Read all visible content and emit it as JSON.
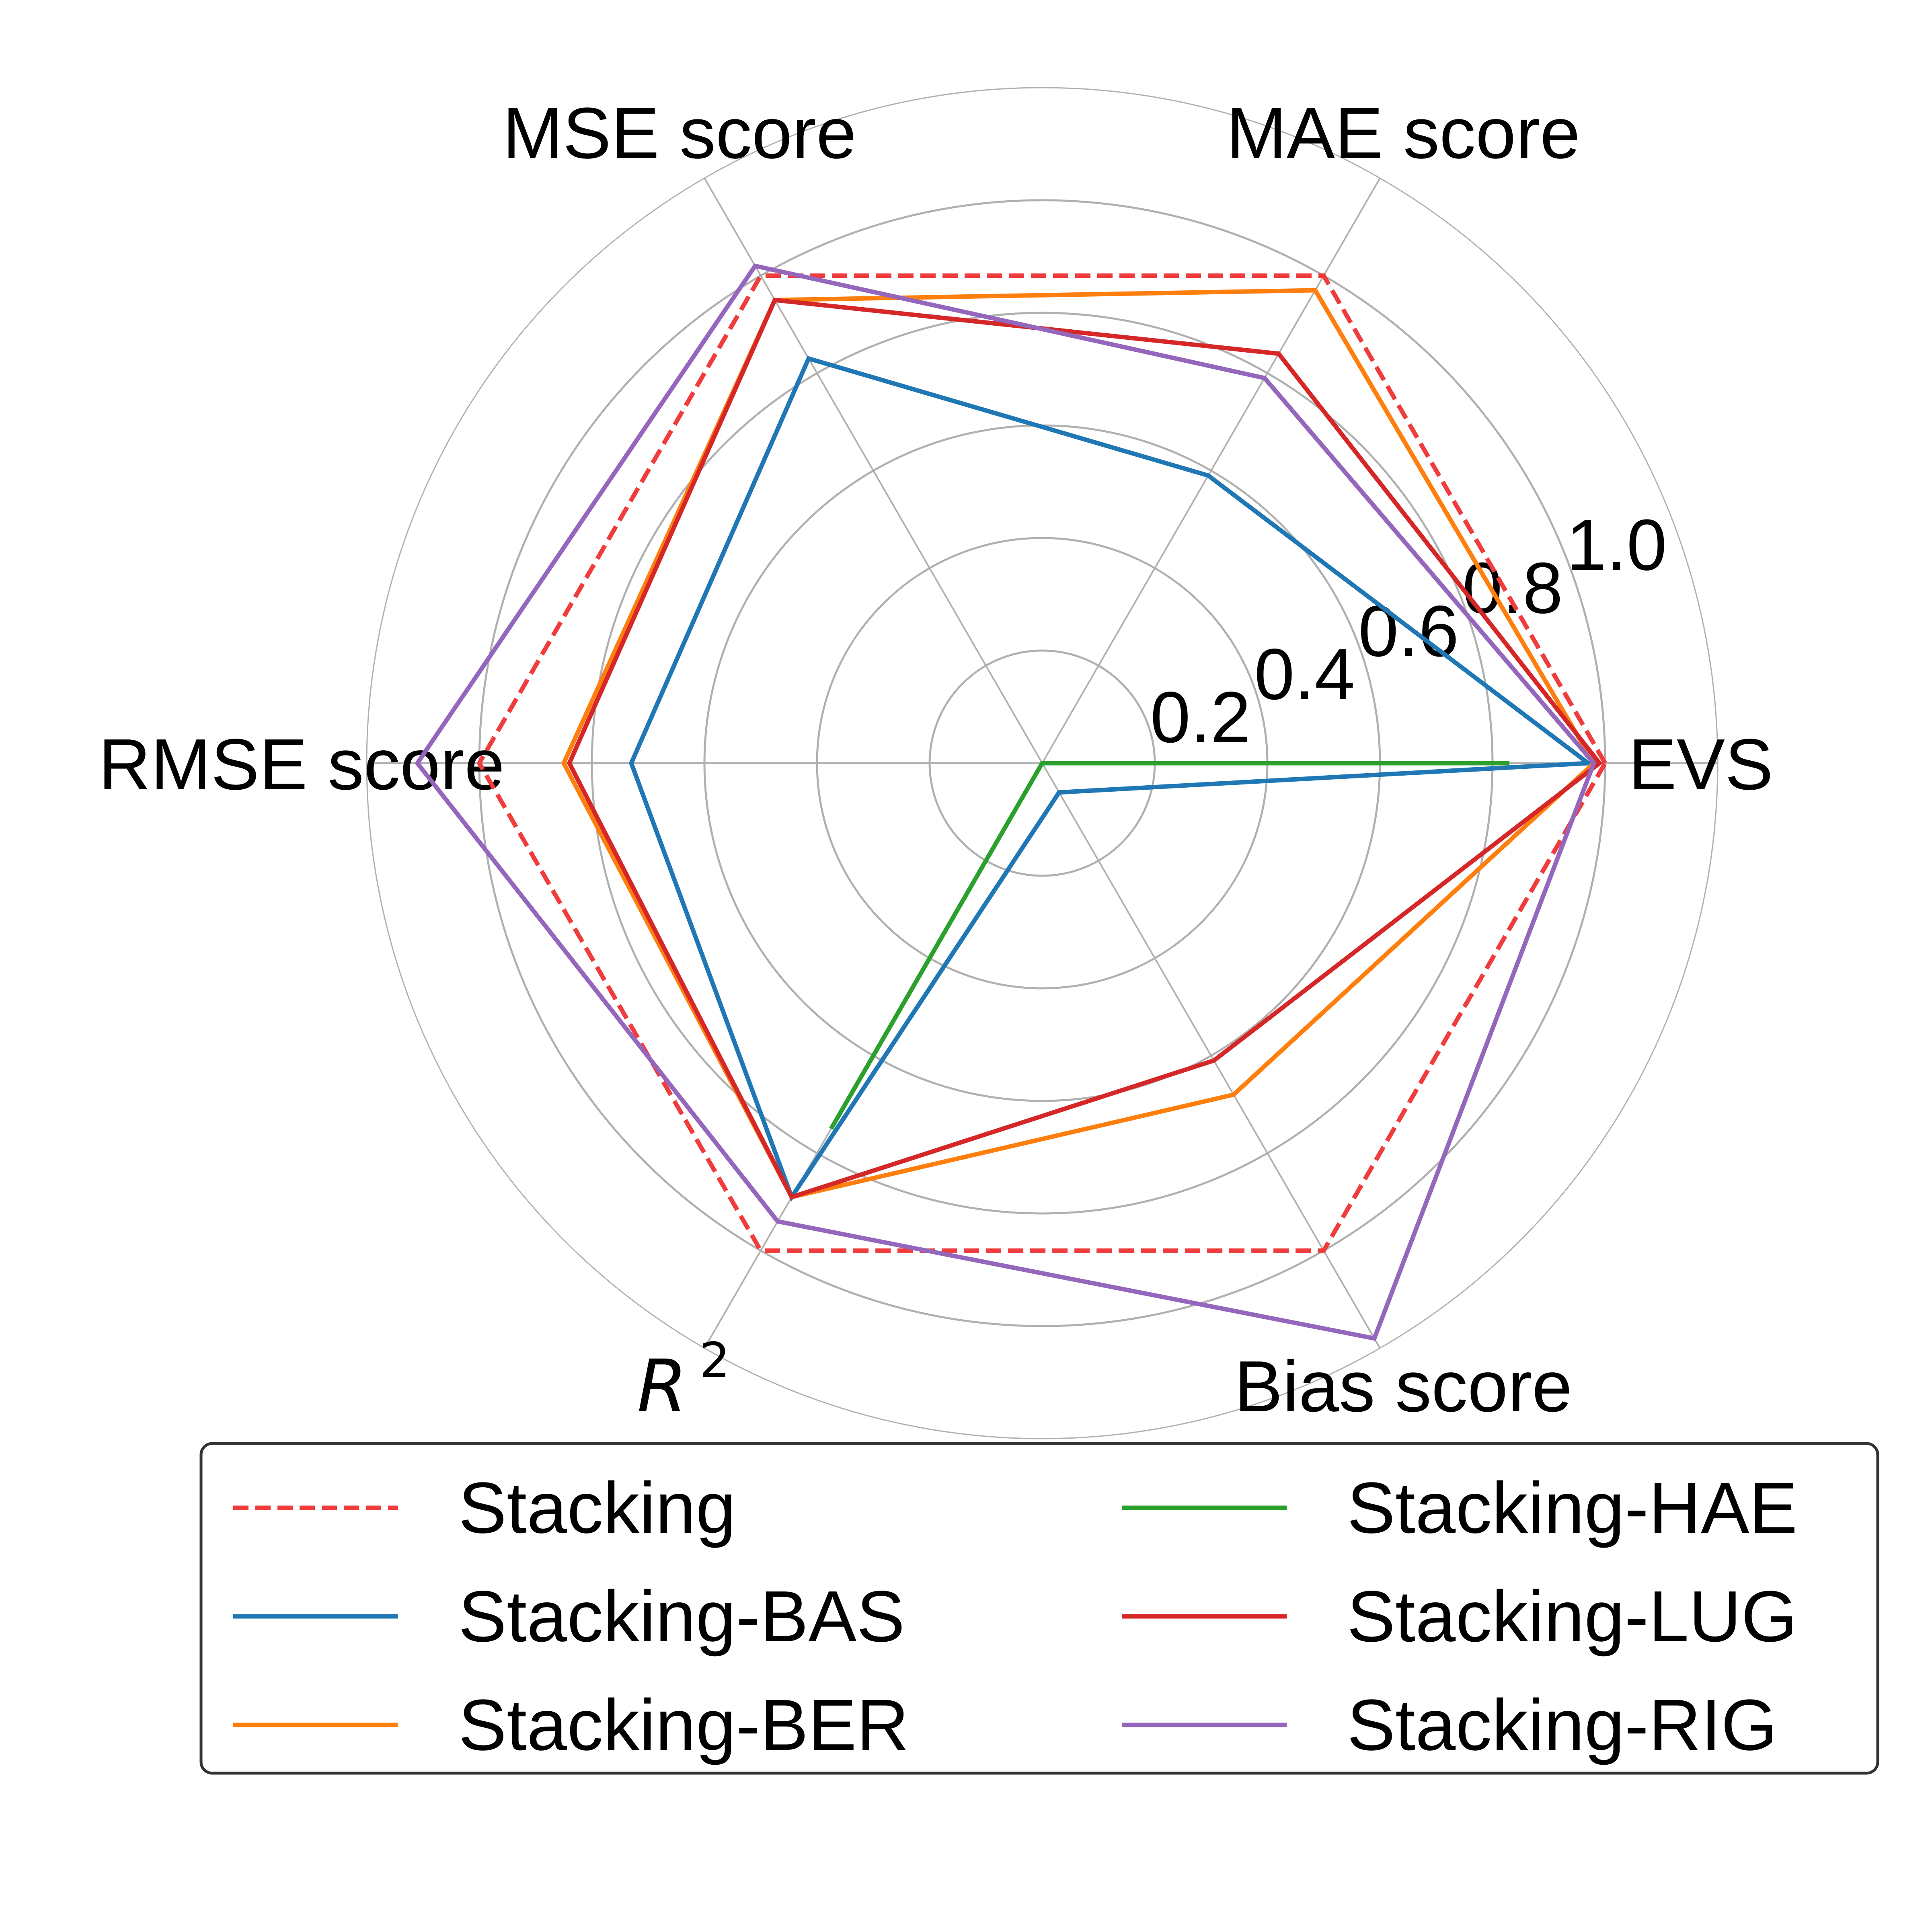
{
  "chart_data": {
    "type": "radar",
    "axes": [
      "EVS",
      "MAE score",
      "MSE score",
      "RMSE score",
      "R",
      "Bias score"
    ],
    "r2_superscript": "2",
    "rmin": 0,
    "rmax": 1.2,
    "radial_ticks": [
      0.2,
      0.4,
      0.6,
      0.8,
      1.0
    ],
    "radial_tick_labels": [
      "0.2",
      "0.4",
      "0.6",
      "0.8",
      "1.0"
    ],
    "grid": true,
    "legend_placement": "bottom",
    "legend_columns": 2,
    "series": [
      {
        "name": "Stacking",
        "color": "#f03c3c",
        "dashed": true,
        "values": [
          1.0,
          1.0,
          1.0,
          1.0,
          1.0,
          1.0
        ]
      },
      {
        "name": "Stacking-BAS",
        "color": "#1f77b4",
        "dashed": false,
        "values": [
          0.97,
          0.59,
          0.83,
          0.73,
          0.89,
          0.06
        ]
      },
      {
        "name": "Stacking-BER",
        "color": "#ff7f0e",
        "dashed": false,
        "values": [
          0.98,
          0.97,
          0.95,
          0.85,
          0.89,
          0.68
        ]
      },
      {
        "name": "Stacking-HAE",
        "color": "#2ca02c",
        "dashed": false,
        "values": [
          0.83,
          0.0,
          0.0,
          0.0,
          0.75,
          0.0
        ]
      },
      {
        "name": "Stacking-LUG",
        "color": "#d62728",
        "dashed": false,
        "values": [
          0.99,
          0.84,
          0.95,
          0.84,
          0.89,
          0.61
        ]
      },
      {
        "name": "Stacking-RIG",
        "color": "#9467bd",
        "dashed": false,
        "values": [
          0.98,
          0.79,
          1.02,
          1.11,
          0.94,
          1.18
        ]
      }
    ]
  }
}
